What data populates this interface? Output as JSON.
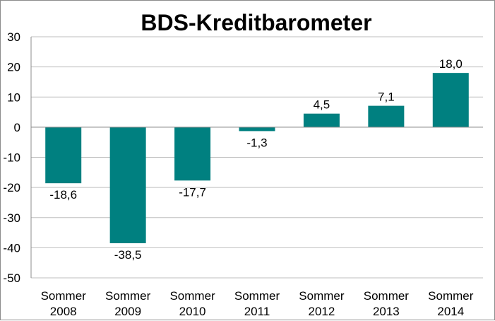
{
  "chart_data": {
    "type": "bar",
    "title": "BDS-Kreditbarometer",
    "categories": [
      [
        "Sommer",
        "2008"
      ],
      [
        "Sommer",
        "2009"
      ],
      [
        "Sommer",
        "2010"
      ],
      [
        "Sommer",
        "2011"
      ],
      [
        "Sommer",
        "2012"
      ],
      [
        "Sommer",
        "2013"
      ],
      [
        "Sommer",
        "2014"
      ]
    ],
    "values": [
      -18.6,
      -38.5,
      -17.7,
      -1.3,
      4.5,
      7.1,
      18.0
    ],
    "data_labels": [
      "-18,6",
      "-38,5",
      "-17,7",
      "-1,3",
      "4,5",
      "7,1",
      "18,0"
    ],
    "ylim": [
      -50,
      30
    ],
    "yticks": [
      30,
      20,
      10,
      0,
      -10,
      -20,
      -30,
      -40,
      -50
    ],
    "ytick_labels": [
      "30",
      "20",
      "10",
      "0",
      "-10",
      "-20",
      "-30",
      "-40",
      "-50"
    ],
    "grid": true,
    "legend": "none",
    "bar_color": "#008080"
  }
}
